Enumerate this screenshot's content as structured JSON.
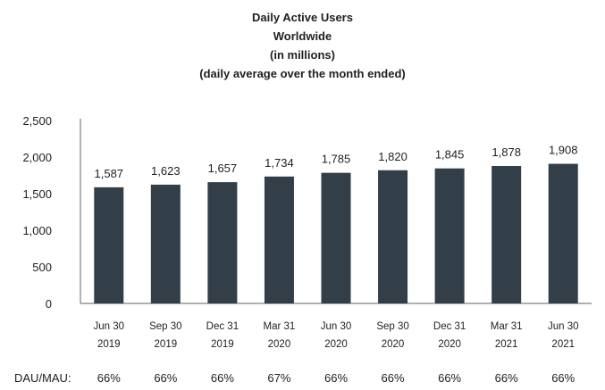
{
  "chart_data": {
    "type": "bar",
    "title": "Daily Active Users",
    "subtitle_lines": [
      "Worldwide",
      "(in millions)",
      "(daily average over the month ended)"
    ],
    "categories": [
      [
        "Jun 30",
        "2019"
      ],
      [
        "Sep 30",
        "2019"
      ],
      [
        "Dec 31",
        "2019"
      ],
      [
        "Mar 31",
        "2020"
      ],
      [
        "Jun 30",
        "2020"
      ],
      [
        "Sep 30",
        "2020"
      ],
      [
        "Dec 31",
        "2020"
      ],
      [
        "Mar 31",
        "2021"
      ],
      [
        "Jun 30",
        "2021"
      ]
    ],
    "values": [
      1587,
      1623,
      1657,
      1734,
      1785,
      1820,
      1845,
      1878,
      1908
    ],
    "value_labels": [
      "1,587",
      "1,623",
      "1,657",
      "1,734",
      "1,785",
      "1,820",
      "1,845",
      "1,878",
      "1,908"
    ],
    "ylim": [
      0,
      2500
    ],
    "yticks": [
      0,
      500,
      1000,
      1500,
      2000,
      2500
    ],
    "ytick_labels": [
      "0",
      "500",
      "1,000",
      "1,500",
      "2,000",
      "2,500"
    ],
    "grid": false,
    "bar_color": "#323e48",
    "footer": {
      "label": "DAU/MAU:",
      "values": [
        "66%",
        "66%",
        "66%",
        "67%",
        "66%",
        "66%",
        "66%",
        "66%",
        "66%"
      ]
    }
  }
}
